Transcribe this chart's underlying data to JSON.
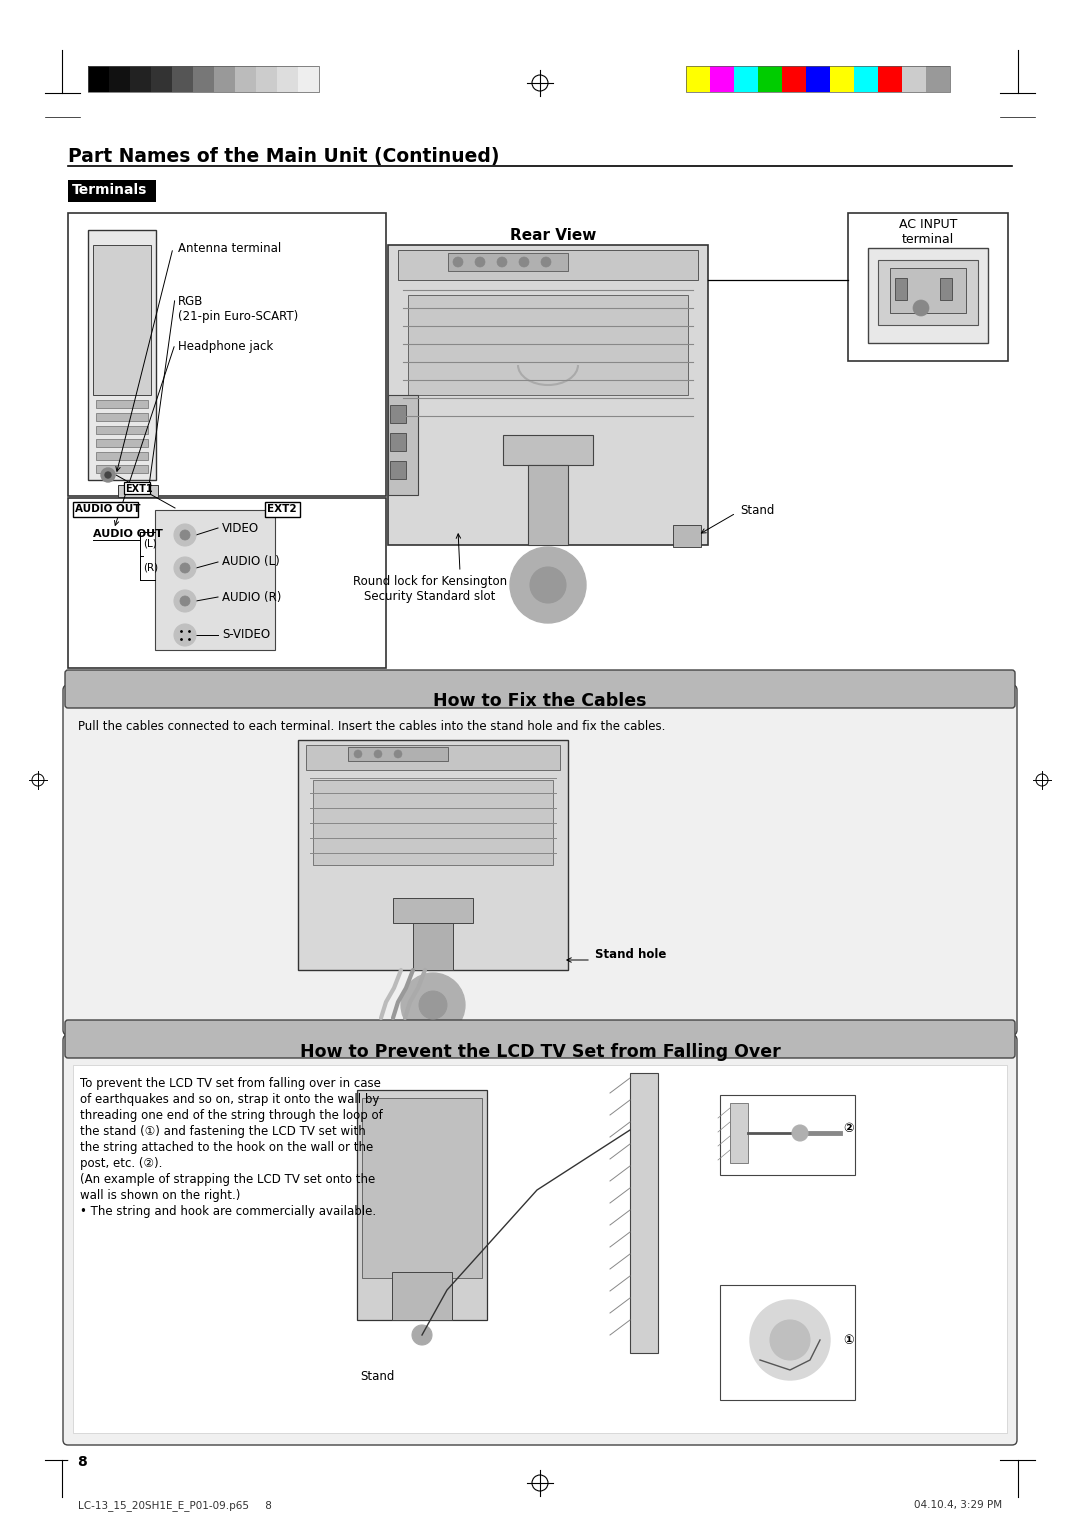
{
  "title": "Part Names of the Main Unit (Continued)",
  "section1_label": "Terminals",
  "section2_label": "How to Fix the Cables",
  "section3_label": "How to Prevent the LCD TV Set from Falling Over",
  "rear_view_label": "Rear View",
  "ac_input_label": "AC INPUT\nterminal",
  "antenna_label": "Antenna terminal",
  "ext1_label": "EXT1",
  "rgb_label": "RGB\n(21-pin Euro-SCART)",
  "headphone_label": "Headphone jack",
  "audio_out_label": "AUDIO OUT",
  "ext2_label": "EXT2",
  "video_label": "VIDEO",
  "audio_l_label": "AUDIO (L)",
  "audio_r_label": "AUDIO (R)",
  "svideo_label": "S-VIDEO",
  "audio_out_side_label": "AUDIO OUT",
  "l_label": "(L)",
  "r_label": "(R)",
  "stand_label": "Stand",
  "round_lock_label": "Round lock for Kensington\nSecurity Standard slot",
  "fix_cables_text": "Pull the cables connected to each terminal. Insert the cables into the stand hole and fix the cables.",
  "stand_hole_label": "Stand hole",
  "prevent_fall_text1": "To prevent the LCD TV set from falling over in case",
  "prevent_fall_text2": "of earthquakes and so on, strap it onto the wall by",
  "prevent_fall_text3": "threading one end of the string through the loop of",
  "prevent_fall_text4": "the stand (①) and fastening the LCD TV set with",
  "prevent_fall_text5": "the string attached to the hook on the wall or the",
  "prevent_fall_text6": "post, etc. (②).",
  "prevent_fall_text7": "(An example of strapping the LCD TV set onto the",
  "prevent_fall_text8": "wall is shown on the right.)",
  "prevent_fall_text9": "• The string and hook are commercially available.",
  "stand_label2": "Stand",
  "page_num": "8",
  "footer_left": "LC-13_15_20SH1E_E_P01-09.p65     8",
  "footer_right": "04.10.4, 3:29 PM",
  "bg_color": "#ffffff",
  "black": "#000000",
  "dark_gray": "#333333",
  "mid_gray": "#808080",
  "light_gray": "#cccccc",
  "very_light_gray": "#eeeeee",
  "header_bg": "#c0c0c0",
  "grayscale_colors": [
    "#000000",
    "#111111",
    "#222222",
    "#333333",
    "#555555",
    "#777777",
    "#999999",
    "#bbbbbb",
    "#cccccc",
    "#dddddd",
    "#eeeeee"
  ],
  "color_bars": [
    "#ffff00",
    "#ff00ff",
    "#00ffff",
    "#00cc00",
    "#ff0000",
    "#0000ff",
    "#ffff00",
    "#00ffff",
    "#ff0000",
    "#cccccc",
    "#999999"
  ]
}
